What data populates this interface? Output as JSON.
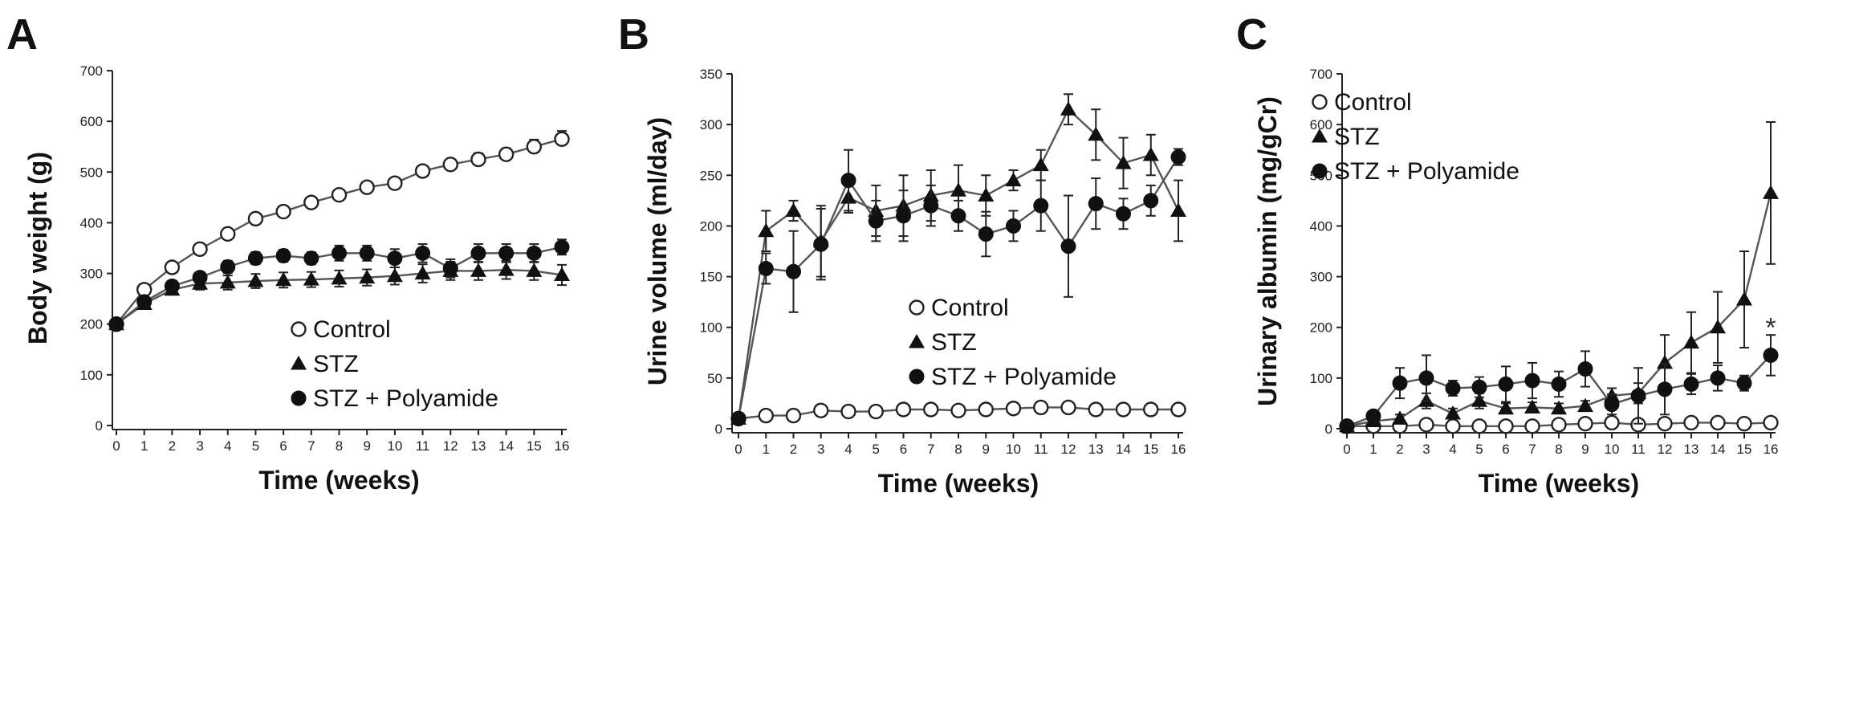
{
  "chart_data": [
    {
      "type": "line",
      "panel_label": "A",
      "xlabel": "Time (weeks)",
      "ylabel": "Body weight (g)",
      "ylim": [
        0,
        700
      ],
      "yticks": [
        0,
        100,
        200,
        300,
        400,
        500,
        600,
        700
      ],
      "x": [
        0,
        1,
        2,
        3,
        4,
        5,
        6,
        7,
        8,
        9,
        10,
        11,
        12,
        13,
        14,
        15,
        16
      ],
      "legend_position": "bottom-right",
      "legend": [
        "Control",
        "STZ",
        "STZ + Polyamide"
      ],
      "series": [
        {
          "name": "Control",
          "marker": "open-circle",
          "values": [
            200,
            268,
            312,
            348,
            378,
            408,
            422,
            440,
            455,
            470,
            478,
            502,
            515,
            525,
            535,
            550,
            565
          ],
          "errors": [
            5,
            6,
            6,
            6,
            7,
            7,
            7,
            8,
            8,
            8,
            10,
            10,
            10,
            12,
            12,
            14,
            16
          ]
        },
        {
          "name": "STZ",
          "marker": "filled-triangle",
          "values": [
            200,
            240,
            268,
            280,
            282,
            285,
            287,
            288,
            290,
            292,
            295,
            300,
            305,
            305,
            307,
            305,
            297
          ],
          "errors": [
            5,
            8,
            10,
            12,
            14,
            14,
            15,
            15,
            16,
            16,
            17,
            18,
            18,
            18,
            18,
            18,
            20
          ]
        },
        {
          "name": "STZ + Polyamide",
          "marker": "filled-circle",
          "values": [
            200,
            244,
            275,
            292,
            313,
            330,
            335,
            330,
            340,
            340,
            330,
            340,
            310,
            340,
            340,
            340,
            352
          ],
          "errors": [
            5,
            8,
            10,
            10,
            12,
            12,
            12,
            12,
            15,
            15,
            18,
            18,
            18,
            18,
            18,
            18,
            15
          ]
        }
      ],
      "annotations": []
    },
    {
      "type": "line",
      "panel_label": "B",
      "xlabel": "Time (weeks)",
      "ylabel": "Urine volume (ml/day)",
      "ylim": [
        0,
        350
      ],
      "yticks": [
        0,
        50,
        100,
        150,
        200,
        250,
        300,
        350
      ],
      "ytick_labels": [
        "0",
        "50",
        "100",
        "150",
        "200",
        "250",
        "300",
        "350"
      ],
      "x": [
        0,
        1,
        2,
        3,
        4,
        5,
        6,
        7,
        8,
        9,
        10,
        11,
        12,
        13,
        14,
        15,
        16
      ],
      "legend_position": "center-right",
      "legend": [
        "Control",
        "STZ",
        "STZ + Polyamide"
      ],
      "series": [
        {
          "name": "Control",
          "marker": "open-circle",
          "values": [
            10,
            13,
            13,
            18,
            17,
            17,
            19,
            19,
            18,
            19,
            20,
            21,
            21,
            19,
            19,
            19,
            19
          ],
          "errors": [
            2,
            2,
            2,
            2,
            2,
            2,
            2,
            2,
            2,
            2,
            2,
            2,
            2,
            2,
            2,
            2,
            2
          ]
        },
        {
          "name": "STZ",
          "marker": "filled-triangle",
          "values": [
            10,
            195,
            215,
            185,
            228,
            215,
            220,
            230,
            235,
            230,
            245,
            260,
            315,
            290,
            262,
            270,
            215
          ],
          "errors": [
            2,
            20,
            10,
            35,
            15,
            25,
            30,
            25,
            25,
            20,
            10,
            15,
            15,
            25,
            25,
            20,
            30
          ]
        },
        {
          "name": "STZ + Polyamide",
          "marker": "filled-circle",
          "values": [
            10,
            158,
            155,
            182,
            245,
            205,
            210,
            220,
            210,
            192,
            200,
            220,
            180,
            222,
            212,
            225,
            268
          ],
          "errors": [
            2,
            15,
            40,
            35,
            30,
            20,
            25,
            20,
            15,
            22,
            15,
            25,
            50,
            25,
            15,
            15,
            8
          ]
        }
      ],
      "annotations": []
    },
    {
      "type": "line",
      "panel_label": "C",
      "xlabel": "Time (weeks)",
      "ylabel": "Urinary albumin (mg/gCr)",
      "ylim": [
        0,
        700
      ],
      "yticks": [
        0,
        100,
        200,
        300,
        400,
        500,
        600,
        700
      ],
      "x": [
        0,
        1,
        2,
        3,
        4,
        5,
        6,
        7,
        8,
        9,
        10,
        11,
        12,
        13,
        14,
        15,
        16
      ],
      "legend_position": "top-left",
      "legend": [
        "Control",
        "STZ",
        "STZ + Polyamide"
      ],
      "series": [
        {
          "name": "Control",
          "marker": "open-circle",
          "values": [
            5,
            5,
            5,
            8,
            5,
            5,
            5,
            5,
            8,
            10,
            12,
            8,
            10,
            12,
            12,
            10,
            12
          ],
          "errors": [
            1,
            1,
            1,
            2,
            1,
            1,
            1,
            1,
            2,
            2,
            2,
            2,
            2,
            2,
            2,
            2,
            2
          ]
        },
        {
          "name": "STZ",
          "marker": "filled-triangle",
          "values": [
            5,
            15,
            20,
            55,
            30,
            55,
            40,
            42,
            40,
            45,
            65,
            70,
            130,
            170,
            200,
            255,
            465
          ],
          "errors": [
            2,
            5,
            8,
            15,
            10,
            15,
            10,
            10,
            10,
            10,
            15,
            20,
            55,
            60,
            70,
            95,
            140
          ]
        },
        {
          "name": "STZ + Polyamide",
          "marker": "filled-circle",
          "values": [
            5,
            25,
            90,
            100,
            80,
            82,
            88,
            95,
            88,
            118,
            48,
            65,
            78,
            88,
            100,
            90,
            145
          ],
          "errors": [
            2,
            5,
            30,
            45,
            15,
            20,
            35,
            35,
            25,
            35,
            20,
            55,
            50,
            20,
            25,
            15,
            40
          ]
        }
      ],
      "annotations": [
        {
          "text": "*",
          "x": 16,
          "y": 200
        }
      ]
    }
  ]
}
